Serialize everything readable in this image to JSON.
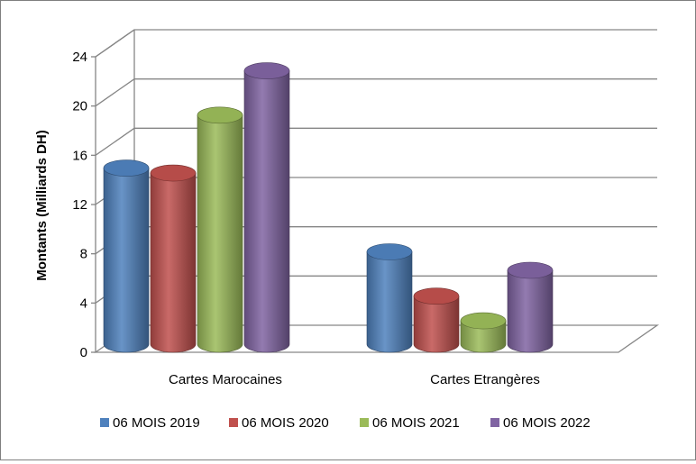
{
  "chart_data": {
    "type": "bar",
    "title": "",
    "xlabel": "",
    "ylabel": "Montants (Milliards DH)",
    "ylim": [
      0,
      24
    ],
    "yticks": [
      0,
      4,
      8,
      12,
      16,
      20,
      24
    ],
    "grid": true,
    "legend_position": "bottom",
    "categories": [
      "Cartes Marocaines",
      "Cartes Etrangères"
    ],
    "series": [
      {
        "name": "06 MOIS 2019",
        "color": "#4f81bd",
        "values": [
          14.3,
          7.5
        ]
      },
      {
        "name": "06 MOIS 2020",
        "color": "#c0504d",
        "values": [
          13.9,
          3.9
        ]
      },
      {
        "name": "06 MOIS 2021",
        "color": "#9bbb59",
        "values": [
          18.6,
          1.9
        ]
      },
      {
        "name": "06 MOIS 2022",
        "color": "#8064a2",
        "values": [
          22.2,
          6.0
        ]
      }
    ]
  }
}
